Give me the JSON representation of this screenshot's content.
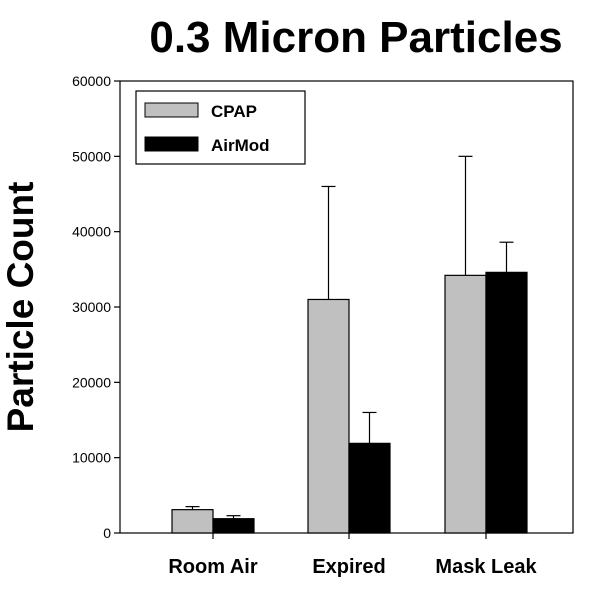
{
  "chart_data": {
    "type": "bar",
    "title": "0.3 Micron Particles",
    "xlabel": "",
    "ylabel": "Particle Count",
    "categories": [
      "Room Air",
      "Expired",
      "Mask Leak"
    ],
    "series": [
      {
        "name": "CPAP",
        "color": "#c0c0c0",
        "values": [
          3100,
          31000,
          34200
        ],
        "error_plus": [
          400,
          15000,
          15800
        ]
      },
      {
        "name": "AirMod",
        "color": "#000000",
        "values": [
          1900,
          11900,
          34600
        ],
        "error_plus": [
          400,
          4100,
          4000
        ]
      }
    ],
    "ylim": [
      0,
      60000
    ],
    "yticks": [
      "0",
      "10000",
      "20000",
      "30000",
      "40000",
      "50000",
      "60000"
    ],
    "grid": false,
    "legend_position": "top-left"
  }
}
